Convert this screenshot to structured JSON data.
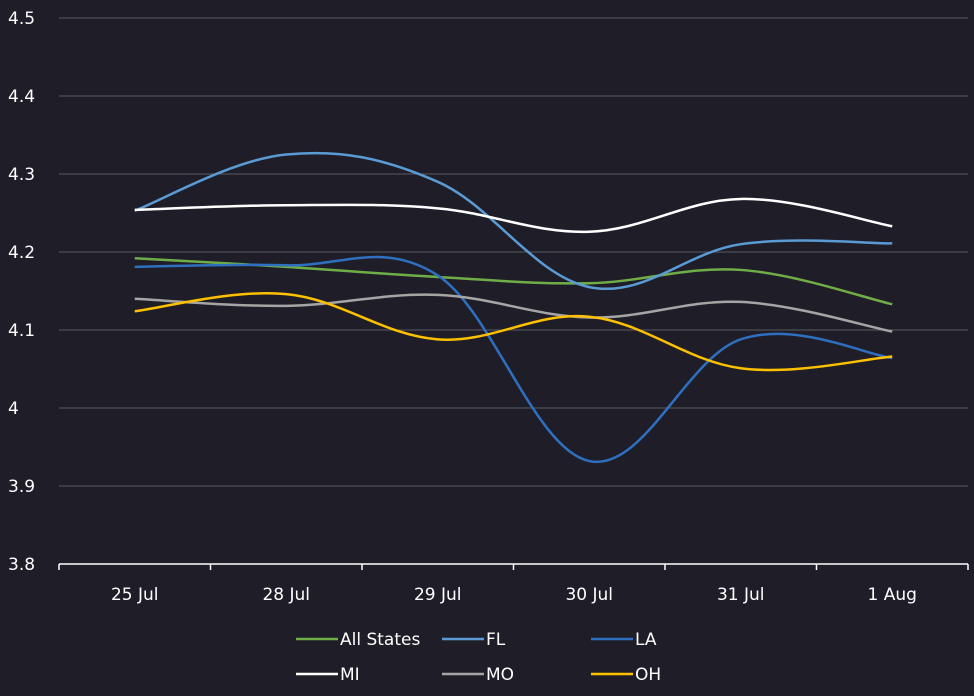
{
  "chart_data": {
    "type": "line",
    "title": "",
    "xlabel": "",
    "ylabel": "",
    "categories": [
      "25 Jul",
      "28 Jul",
      "29 Jul",
      "30 Jul",
      "31 Jul",
      "1 Aug"
    ],
    "ylim": [
      3.8,
      4.5
    ],
    "yticks": [
      "3.8",
      "3.9",
      "4",
      "4.1",
      "4.2",
      "4.3",
      "4.4",
      "4.5"
    ],
    "grid": true,
    "legend_position": "bottom",
    "series": [
      {
        "name": "All States",
        "color": "#70ad47",
        "values": [
          4.192,
          4.181,
          4.168,
          4.16,
          4.177,
          4.133
        ]
      },
      {
        "name": "FL",
        "color": "#5b9bd5",
        "values": [
          4.253,
          4.325,
          4.29,
          4.155,
          4.21,
          4.211
        ]
      },
      {
        "name": "LA",
        "color": "#2e6fc0",
        "values": [
          4.181,
          4.183,
          4.17,
          3.932,
          4.088,
          4.064
        ]
      },
      {
        "name": "MI",
        "color": "#ffffff",
        "values": [
          4.254,
          4.26,
          4.256,
          4.226,
          4.268,
          4.233
        ]
      },
      {
        "name": "MO",
        "color": "#a5a5a5",
        "values": [
          4.14,
          4.131,
          4.145,
          4.116,
          4.136,
          4.098
        ]
      },
      {
        "name": "OH",
        "color": "#ffc000",
        "values": [
          4.124,
          4.146,
          4.088,
          4.117,
          4.051,
          4.066
        ]
      }
    ]
  }
}
